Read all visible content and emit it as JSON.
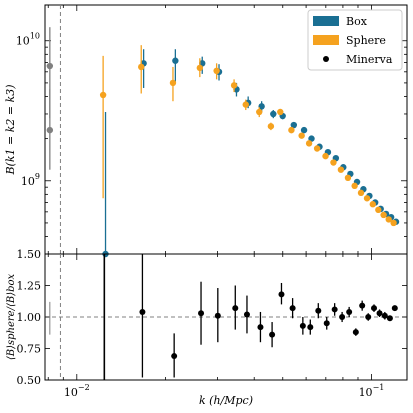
{
  "chart_data": [
    {
      "type": "scatter",
      "panel": "top",
      "xlabel": "",
      "ylabel": "B(k1 = k2 = k3)",
      "xscale": "log",
      "yscale": "log",
      "xlim": [
        0.0078,
        0.132
      ],
      "ylim": [
        300000000,
        18000000000
      ],
      "yticks": [
        {
          "value": 1000000000,
          "base": "10",
          "exp": "9"
        },
        {
          "value": 10000000000,
          "base": "10",
          "exp": "10"
        }
      ],
      "legend": {
        "position": "top-right",
        "entries": [
          {
            "label": "Box",
            "color": "#1a6f93",
            "marker": "patch"
          },
          {
            "label": "Sphere",
            "color": "#f5a21f",
            "marker": "patch"
          },
          {
            "label": "Minerva",
            "color": "#000000",
            "marker": "dot"
          }
        ]
      },
      "series": [
        {
          "name": "Box",
          "color": "#1a6f93",
          "points": [
            {
              "x": 0.0124,
              "y": 300000000,
              "lo": 300000000,
              "hi": 3100000000
            },
            {
              "x": 0.0167,
              "y": 6900000000,
              "lo": 4600000000,
              "hi": 8700000000
            },
            {
              "x": 0.0214,
              "y": 7200000000,
              "lo": 5100000000,
              "hi": 8700000000
            },
            {
              "x": 0.0264,
              "y": 6900000000,
              "lo": 5800000000,
              "hi": 7700000000
            },
            {
              "x": 0.0301,
              "y": 6000000000,
              "lo": 5200000000,
              "hi": 6800000000
            },
            {
              "x": 0.0345,
              "y": 4500000000,
              "lo": 4000000000,
              "hi": 5000000000
            },
            {
              "x": 0.0378,
              "y": 3600000000,
              "lo": 3300000000,
              "hi": 4000000000
            },
            {
              "x": 0.042,
              "y": 3400000000,
              "lo": 3100000000,
              "hi": 3700000000
            },
            {
              "x": 0.046,
              "y": 3000000000,
              "lo": 2800000000,
              "hi": 3200000000
            },
            {
              "x": 0.0495,
              "y": 2900000000,
              "lo": 2750000000,
              "hi": 3050000000
            },
            {
              "x": 0.054,
              "y": 2500000000,
              "lo": 2380000000,
              "hi": 2630000000
            },
            {
              "x": 0.0585,
              "y": 2300000000,
              "lo": 2200000000,
              "hi": 2400000000
            },
            {
              "x": 0.062,
              "y": 2000000000,
              "lo": 1920000000,
              "hi": 2080000000
            },
            {
              "x": 0.066,
              "y": 1750000000,
              "lo": 1680000000,
              "hi": 1820000000
            },
            {
              "x": 0.0705,
              "y": 1600000000,
              "lo": 1540000000,
              "hi": 1660000000
            },
            {
              "x": 0.075,
              "y": 1450000000,
              "lo": 1400000000,
              "hi": 1500000000
            },
            {
              "x": 0.0795,
              "y": 1250000000,
              "lo": 1210000000,
              "hi": 1290000000
            },
            {
              "x": 0.084,
              "y": 1120000000,
              "lo": 1085000000,
              "hi": 1155000000
            },
            {
              "x": 0.0885,
              "y": 980000000,
              "lo": 950000000,
              "hi": 1010000000
            },
            {
              "x": 0.093,
              "y": 870000000,
              "lo": 845000000,
              "hi": 895000000
            },
            {
              "x": 0.0975,
              "y": 780000000,
              "lo": 758000000,
              "hi": 802000000
            },
            {
              "x": 0.102,
              "y": 700000000,
              "lo": 682000000,
              "hi": 718000000
            },
            {
              "x": 0.1065,
              "y": 630000000,
              "lo": 615000000,
              "hi": 645000000
            },
            {
              "x": 0.111,
              "y": 580000000,
              "lo": 567000000,
              "hi": 593000000
            },
            {
              "x": 0.1155,
              "y": 550000000,
              "lo": 538000000,
              "hi": 562000000
            },
            {
              "x": 0.12,
              "y": 510000000,
              "lo": 500000000,
              "hi": 520000000
            }
          ]
        },
        {
          "name": "Sphere",
          "color": "#f5a21f",
          "points": [
            {
              "x": 0.0124,
              "y": 4100000000,
              "lo": 750000000,
              "hi": 7800000000
            },
            {
              "x": 0.0167,
              "y": 6500000000,
              "lo": 4200000000,
              "hi": 9300000000
            },
            {
              "x": 0.0214,
              "y": 5000000000,
              "lo": 3700000000,
              "hi": 6500000000
            },
            {
              "x": 0.0264,
              "y": 6400000000,
              "lo": 5500000000,
              "hi": 7500000000
            },
            {
              "x": 0.0301,
              "y": 6100000000,
              "lo": 5300000000,
              "hi": 6900000000
            },
            {
              "x": 0.0345,
              "y": 4800000000,
              "lo": 4300000000,
              "hi": 5300000000
            },
            {
              "x": 0.0378,
              "y": 3500000000,
              "lo": 3200000000,
              "hi": 3800000000
            },
            {
              "x": 0.042,
              "y": 3100000000,
              "lo": 2850000000,
              "hi": 3350000000
            },
            {
              "x": 0.046,
              "y": 2450000000,
              "lo": 2300000000,
              "hi": 2600000000
            },
            {
              "x": 0.0495,
              "y": 3100000000,
              "lo": 2950000000,
              "hi": 3250000000
            },
            {
              "x": 0.054,
              "y": 2300000000,
              "lo": 2190000000,
              "hi": 2410000000
            },
            {
              "x": 0.0585,
              "y": 2100000000,
              "lo": 2010000000,
              "hi": 2190000000
            },
            {
              "x": 0.062,
              "y": 1850000000,
              "lo": 1780000000,
              "hi": 1920000000
            },
            {
              "x": 0.066,
              "y": 1700000000,
              "lo": 1640000000,
              "hi": 1760000000
            },
            {
              "x": 0.0705,
              "y": 1500000000,
              "lo": 1450000000,
              "hi": 1550000000
            },
            {
              "x": 0.075,
              "y": 1350000000,
              "lo": 1305000000,
              "hi": 1395000000
            },
            {
              "x": 0.0795,
              "y": 1200000000,
              "lo": 1165000000,
              "hi": 1235000000
            },
            {
              "x": 0.084,
              "y": 1050000000,
              "lo": 1020000000,
              "hi": 1080000000
            },
            {
              "x": 0.0885,
              "y": 920000000,
              "lo": 895000000,
              "hi": 945000000
            },
            {
              "x": 0.093,
              "y": 820000000,
              "lo": 798000000,
              "hi": 842000000
            },
            {
              "x": 0.0975,
              "y": 750000000,
              "lo": 730000000,
              "hi": 770000000
            },
            {
              "x": 0.102,
              "y": 680000000,
              "lo": 663000000,
              "hi": 697000000
            },
            {
              "x": 0.1065,
              "y": 620000000,
              "lo": 605000000,
              "hi": 635000000
            },
            {
              "x": 0.111,
              "y": 570000000,
              "lo": 557000000,
              "hi": 583000000
            },
            {
              "x": 0.1155,
              "y": 530000000,
              "lo": 518000000,
              "hi": 542000000
            },
            {
              "x": 0.12,
              "y": 500000000,
              "lo": 490000000,
              "hi": 510000000
            }
          ]
        },
        {
          "name": "Minerva",
          "color": "#808080",
          "points": [
            {
              "x": 0.0081,
              "y": 6600000000,
              "lo": 2800000000,
              "hi": 12500000000
            },
            {
              "x": 0.0081,
              "y": 2300000000,
              "lo": 1200000000,
              "hi": 4500000000
            }
          ]
        }
      ],
      "vline": 0.0088
    },
    {
      "type": "scatter",
      "panel": "bottom",
      "xlabel": "k (h/Mpc)",
      "ylabel": "⟨B⟩sphere/⟨B⟩box",
      "xscale": "log",
      "xlim": [
        0.0078,
        0.132
      ],
      "ylim": [
        0.5,
        1.5
      ],
      "yticks": [
        "0.50",
        "0.75",
        "1.00",
        "1.25",
        "1.50"
      ],
      "xticks": [
        {
          "value": 0.01,
          "base": "10",
          "exp": "−2"
        },
        {
          "value": 0.1,
          "base": "10",
          "exp": "−1"
        }
      ],
      "hline": 1.0,
      "vline": 0.0088,
      "series": [
        {
          "name": "Ratio",
          "color": "#000000",
          "points": [
            {
              "x": 0.0167,
              "y": 1.04,
              "lo": 0.52,
              "hi": 1.6
            },
            {
              "x": 0.0214,
              "y": 0.69,
              "lo": 0.52,
              "hi": 0.87
            },
            {
              "x": 0.0264,
              "y": 1.03,
              "lo": 0.78,
              "hi": 1.28
            },
            {
              "x": 0.0301,
              "y": 1.01,
              "lo": 0.8,
              "hi": 1.23
            },
            {
              "x": 0.0345,
              "y": 1.07,
              "lo": 0.9,
              "hi": 1.25
            },
            {
              "x": 0.0378,
              "y": 1.02,
              "lo": 0.87,
              "hi": 1.17
            },
            {
              "x": 0.042,
              "y": 0.92,
              "lo": 0.8,
              "hi": 1.04
            },
            {
              "x": 0.046,
              "y": 0.86,
              "lo": 0.76,
              "hi": 0.96
            },
            {
              "x": 0.0495,
              "y": 1.18,
              "lo": 1.1,
              "hi": 1.27
            },
            {
              "x": 0.054,
              "y": 1.07,
              "lo": 0.99,
              "hi": 1.15
            },
            {
              "x": 0.0585,
              "y": 0.93,
              "lo": 0.86,
              "hi": 1.0
            },
            {
              "x": 0.062,
              "y": 0.92,
              "lo": 0.86,
              "hi": 0.98
            },
            {
              "x": 0.066,
              "y": 1.05,
              "lo": 0.99,
              "hi": 1.11
            },
            {
              "x": 0.0705,
              "y": 0.95,
              "lo": 0.9,
              "hi": 1.0
            },
            {
              "x": 0.075,
              "y": 1.06,
              "lo": 1.01,
              "hi": 1.11
            },
            {
              "x": 0.0795,
              "y": 1.0,
              "lo": 0.96,
              "hi": 1.04
            },
            {
              "x": 0.084,
              "y": 1.04,
              "lo": 1.0,
              "hi": 1.08
            },
            {
              "x": 0.0885,
              "y": 0.88,
              "lo": 0.85,
              "hi": 0.91
            },
            {
              "x": 0.093,
              "y": 1.09,
              "lo": 1.05,
              "hi": 1.13
            },
            {
              "x": 0.0975,
              "y": 1.0,
              "lo": 0.97,
              "hi": 1.03
            },
            {
              "x": 0.102,
              "y": 1.07,
              "lo": 1.04,
              "hi": 1.1
            },
            {
              "x": 0.1065,
              "y": 1.03,
              "lo": 1.0,
              "hi": 1.06
            },
            {
              "x": 0.111,
              "y": 1.01,
              "lo": 0.98,
              "hi": 1.04
            },
            {
              "x": 0.1155,
              "y": 0.99,
              "lo": 0.97,
              "hi": 1.01
            },
            {
              "x": 0.12,
              "y": 1.07,
              "lo": 1.05,
              "hi": 1.09
            }
          ],
          "offscale": [
            {
              "x": 0.0124,
              "lo": 0.5,
              "hi": 1.5
            }
          ]
        },
        {
          "name": "Minerva-ref",
          "color": "#808080",
          "points": [],
          "errorbars": [
            {
              "x": 0.0081,
              "lo": 0.86,
              "hi": 1.12
            }
          ]
        }
      ]
    }
  ]
}
